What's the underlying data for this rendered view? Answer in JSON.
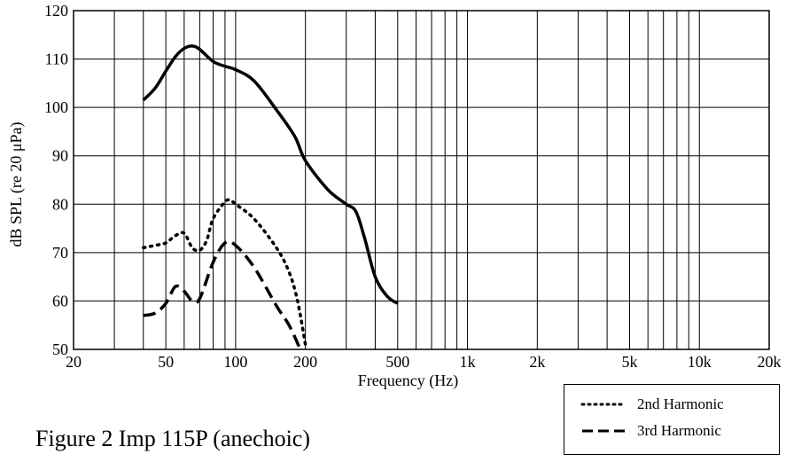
{
  "caption": "Figure 2 Imp 115P (anechoic)",
  "chart_data": {
    "type": "line",
    "title": "",
    "xlabel": "Frequency (Hz)",
    "ylabel": "dB SPL (re 20 μPa)",
    "xscale": "log",
    "xlim": [
      20,
      20000
    ],
    "ylim": [
      50,
      120
    ],
    "grid": true,
    "legend_position": "bottom-right",
    "x_ticks": [
      20,
      50,
      100,
      200,
      500,
      1000,
      2000,
      5000,
      10000,
      20000
    ],
    "x_tick_labels": [
      "20",
      "50",
      "100",
      "200",
      "500",
      "1k",
      "2k",
      "5k",
      "10k",
      "20k"
    ],
    "y_ticks": [
      50,
      60,
      70,
      80,
      90,
      100,
      110,
      120
    ],
    "y_tick_labels": [
      "50",
      "60",
      "70",
      "80",
      "90",
      "100",
      "110",
      "120"
    ],
    "series": [
      {
        "style": "solid",
        "color": "#000000",
        "x": [
          40,
          45,
          50,
          55,
          60,
          65,
          70,
          80,
          90,
          100,
          120,
          150,
          180,
          200,
          250,
          300,
          330,
          360,
          400,
          450,
          500
        ],
        "y": [
          101.5,
          104,
          107.5,
          110.5,
          112.2,
          112.7,
          112,
          109.5,
          108.5,
          107.8,
          105.5,
          99.5,
          94,
          89,
          83,
          80,
          78.5,
          73,
          65,
          61,
          59.5
        ]
      },
      {
        "name": "2nd Harmonic",
        "style": "dotted",
        "color": "#000000",
        "x": [
          40,
          45,
          50,
          55,
          60,
          65,
          70,
          75,
          80,
          90,
          95,
          100,
          120,
          150,
          170,
          185,
          200
        ],
        "y": [
          71,
          71.5,
          72,
          73.5,
          74,
          71,
          70.5,
          72.5,
          77,
          80.5,
          80.8,
          80,
          77,
          71,
          66,
          60,
          51
        ]
      },
      {
        "name": "3rd Harmonic",
        "style": "dashed",
        "color": "#000000",
        "x": [
          40,
          45,
          50,
          55,
          60,
          65,
          70,
          80,
          90,
          100,
          120,
          150,
          170,
          190
        ],
        "y": [
          57,
          57.5,
          59.5,
          63,
          62,
          60,
          60.5,
          68,
          72,
          71.5,
          67,
          59,
          55,
          50
        ]
      }
    ]
  }
}
